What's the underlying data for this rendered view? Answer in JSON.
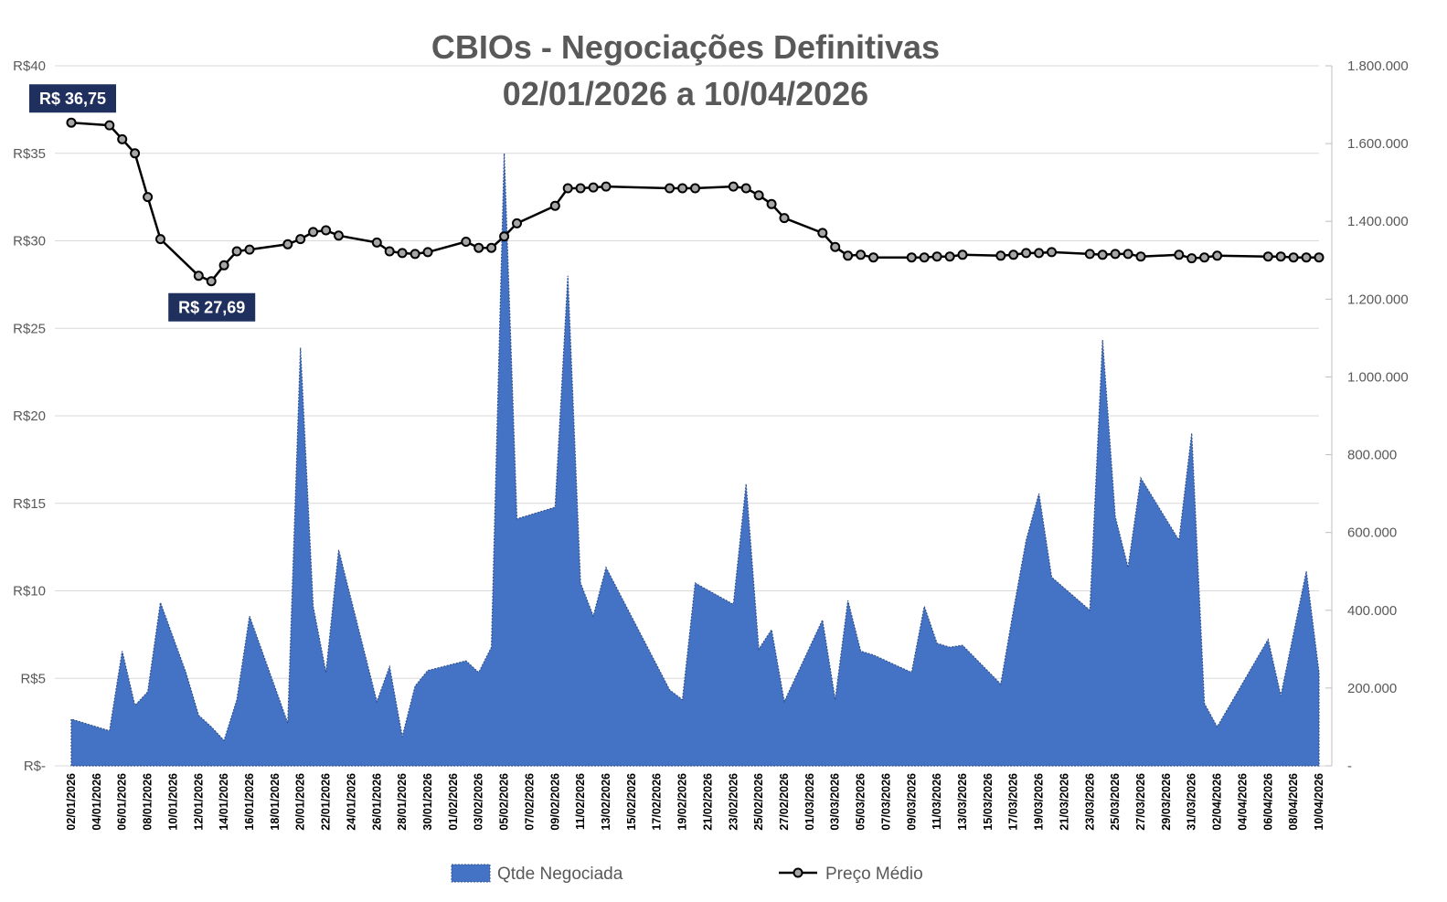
{
  "chart_data": {
    "type": "area+line",
    "title": "CBIOs - Negociações Definitivas",
    "subtitle": "02/01/2026 a 10/04/2026",
    "colors": {
      "area": "#4472C4",
      "area_outline": "#2F528F",
      "line": "#000000",
      "marker_fill": "#A6A6A6",
      "callout_bg": "#1F2F5E",
      "grid": "#D9D9D9",
      "text": "#595959"
    },
    "y_left": {
      "ylim": [
        0,
        40
      ],
      "ticks": [
        0,
        5,
        10,
        15,
        20,
        25,
        30,
        35,
        40
      ],
      "tick_labels": [
        "R$-",
        "R$5",
        "R$10",
        "R$15",
        "R$20",
        "R$25",
        "R$30",
        "R$35",
        "R$40"
      ]
    },
    "y_right": {
      "ylim": [
        0,
        1800000
      ],
      "ticks": [
        0,
        200000,
        400000,
        600000,
        800000,
        1000000,
        1200000,
        1400000,
        1600000,
        1800000
      ],
      "tick_labels": [
        "-",
        "200.000",
        "400.000",
        "600.000",
        "800.000",
        "1.000.000",
        "1.200.000",
        "1.400.000",
        "1.600.000",
        "1.800.000"
      ]
    },
    "x_tick_labels": [
      "02/01/2026",
      "04/01/2026",
      "06/01/2026",
      "08/01/2026",
      "10/01/2026",
      "12/01/2026",
      "14/01/2026",
      "16/01/2026",
      "18/01/2026",
      "20/01/2026",
      "22/01/2026",
      "24/01/2026",
      "26/01/2026",
      "28/01/2026",
      "30/01/2026",
      "01/02/2026",
      "03/02/2026",
      "05/02/2026",
      "07/02/2026",
      "09/02/2026",
      "11/02/2026",
      "13/02/2026",
      "15/02/2026",
      "17/02/2026",
      "19/02/2026",
      "21/02/2026",
      "23/02/2026",
      "25/02/2026",
      "27/02/2026",
      "01/03/2026",
      "03/03/2026",
      "05/03/2026",
      "07/03/2026",
      "09/03/2026",
      "11/03/2026",
      "13/03/2026",
      "15/03/2026",
      "17/03/2026",
      "19/03/2026",
      "21/03/2026",
      "23/03/2026",
      "25/03/2026",
      "27/03/2026",
      "29/03/2026",
      "31/03/2026",
      "02/04/2026",
      "04/04/2026",
      "06/04/2026",
      "08/04/2026",
      "10/04/2026"
    ],
    "series": [
      {
        "name": "Qtde Negociada",
        "type": "area",
        "axis": "right",
        "points": [
          [
            "02/01/2026",
            120000
          ],
          [
            "05/01/2026",
            90000
          ],
          [
            "06/01/2026",
            295000
          ],
          [
            "07/01/2026",
            155000
          ],
          [
            "08/01/2026",
            190000
          ],
          [
            "09/01/2026",
            420000
          ],
          [
            "11/01/2026",
            240000
          ],
          [
            "12/01/2026",
            130000
          ],
          [
            "13/01/2026",
            100000
          ],
          [
            "14/01/2026",
            65000
          ],
          [
            "15/01/2026",
            170000
          ],
          [
            "16/01/2026",
            385000
          ],
          [
            "19/01/2026",
            110000
          ],
          [
            "20/01/2026",
            1075000
          ],
          [
            "21/01/2026",
            410000
          ],
          [
            "22/01/2026",
            240000
          ],
          [
            "23/01/2026",
            555000
          ],
          [
            "26/01/2026",
            165000
          ],
          [
            "27/01/2026",
            255000
          ],
          [
            "28/01/2026",
            75000
          ],
          [
            "29/01/2026",
            205000
          ],
          [
            "30/01/2026",
            245000
          ],
          [
            "02/02/2026",
            270000
          ],
          [
            "03/02/2026",
            240000
          ],
          [
            "04/02/2026",
            305000
          ],
          [
            "05/02/2026",
            1575000
          ],
          [
            "06/02/2026",
            635000
          ],
          [
            "09/02/2026",
            665000
          ],
          [
            "10/02/2026",
            1260000
          ],
          [
            "11/02/2026",
            470000
          ],
          [
            "12/02/2026",
            385000
          ],
          [
            "13/02/2026",
            510000
          ],
          [
            "18/02/2026",
            195000
          ],
          [
            "19/02/2026",
            170000
          ],
          [
            "20/02/2026",
            470000
          ],
          [
            "23/02/2026",
            415000
          ],
          [
            "24/02/2026",
            725000
          ],
          [
            "25/02/2026",
            300000
          ],
          [
            "26/02/2026",
            350000
          ],
          [
            "27/02/2026",
            165000
          ],
          [
            "02/03/2026",
            375000
          ],
          [
            "03/03/2026",
            170000
          ],
          [
            "04/03/2026",
            425000
          ],
          [
            "05/03/2026",
            295000
          ],
          [
            "06/03/2026",
            285000
          ],
          [
            "09/03/2026",
            240000
          ],
          [
            "10/03/2026",
            410000
          ],
          [
            "11/03/2026",
            315000
          ],
          [
            "12/03/2026",
            305000
          ],
          [
            "13/03/2026",
            310000
          ],
          [
            "16/03/2026",
            210000
          ],
          [
            "17/03/2026",
            400000
          ],
          [
            "18/03/2026",
            580000
          ],
          [
            "19/03/2026",
            700000
          ],
          [
            "20/03/2026",
            485000
          ],
          [
            "23/03/2026",
            400000
          ],
          [
            "24/03/2026",
            1095000
          ],
          [
            "25/03/2026",
            640000
          ],
          [
            "26/03/2026",
            510000
          ],
          [
            "27/03/2026",
            740000
          ],
          [
            "30/03/2026",
            580000
          ],
          [
            "31/03/2026",
            855000
          ],
          [
            "01/04/2026",
            160000
          ],
          [
            "02/04/2026",
            100000
          ],
          [
            "06/04/2026",
            325000
          ],
          [
            "07/04/2026",
            180000
          ],
          [
            "09/04/2026",
            500000
          ],
          [
            "10/04/2026",
            240000
          ]
        ]
      },
      {
        "name": "Preço Médio",
        "type": "line",
        "axis": "left",
        "points": [
          [
            "02/01/2026",
            36.75
          ],
          [
            "05/01/2026",
            36.6
          ],
          [
            "06/01/2026",
            35.8
          ],
          [
            "07/01/2026",
            35.0
          ],
          [
            "08/01/2026",
            32.5
          ],
          [
            "09/01/2026",
            30.1
          ],
          [
            "12/01/2026",
            28.0
          ],
          [
            "13/01/2026",
            27.69
          ],
          [
            "14/01/2026",
            28.6
          ],
          [
            "15/01/2026",
            29.4
          ],
          [
            "16/01/2026",
            29.5
          ],
          [
            "19/01/2026",
            29.8
          ],
          [
            "20/01/2026",
            30.1
          ],
          [
            "21/01/2026",
            30.5
          ],
          [
            "22/01/2026",
            30.6
          ],
          [
            "23/01/2026",
            30.3
          ],
          [
            "26/01/2026",
            29.9
          ],
          [
            "27/01/2026",
            29.4
          ],
          [
            "28/01/2026",
            29.3
          ],
          [
            "29/01/2026",
            29.25
          ],
          [
            "30/01/2026",
            29.35
          ],
          [
            "02/02/2026",
            29.95
          ],
          [
            "03/02/2026",
            29.6
          ],
          [
            "04/02/2026",
            29.6
          ],
          [
            "05/02/2026",
            30.25
          ],
          [
            "06/02/2026",
            31.0
          ],
          [
            "09/02/2026",
            32.0
          ],
          [
            "10/02/2026",
            33.0
          ],
          [
            "11/02/2026",
            33.0
          ],
          [
            "12/02/2026",
            33.05
          ],
          [
            "13/02/2026",
            33.1
          ],
          [
            "18/02/2026",
            33.0
          ],
          [
            "19/02/2026",
            33.0
          ],
          [
            "20/02/2026",
            33.0
          ],
          [
            "23/02/2026",
            33.1
          ],
          [
            "24/02/2026",
            33.0
          ],
          [
            "25/02/2026",
            32.6
          ],
          [
            "26/02/2026",
            32.1
          ],
          [
            "27/02/2026",
            31.3
          ],
          [
            "02/03/2026",
            30.45
          ],
          [
            "03/03/2026",
            29.65
          ],
          [
            "04/03/2026",
            29.15
          ],
          [
            "05/03/2026",
            29.2
          ],
          [
            "06/03/2026",
            29.05
          ],
          [
            "09/03/2026",
            29.05
          ],
          [
            "10/03/2026",
            29.05
          ],
          [
            "11/03/2026",
            29.1
          ],
          [
            "12/03/2026",
            29.1
          ],
          [
            "13/03/2026",
            29.2
          ],
          [
            "16/03/2026",
            29.15
          ],
          [
            "17/03/2026",
            29.2
          ],
          [
            "18/03/2026",
            29.3
          ],
          [
            "19/03/2026",
            29.3
          ],
          [
            "20/03/2026",
            29.35
          ],
          [
            "23/03/2026",
            29.25
          ],
          [
            "24/03/2026",
            29.2
          ],
          [
            "25/03/2026",
            29.25
          ],
          [
            "26/03/2026",
            29.25
          ],
          [
            "27/03/2026",
            29.1
          ],
          [
            "30/03/2026",
            29.2
          ],
          [
            "31/03/2026",
            29.0
          ],
          [
            "01/04/2026",
            29.05
          ],
          [
            "02/04/2026",
            29.15
          ],
          [
            "06/04/2026",
            29.1
          ],
          [
            "07/04/2026",
            29.1
          ],
          [
            "08/04/2026",
            29.05
          ],
          [
            "09/04/2026",
            29.05
          ],
          [
            "10/04/2026",
            29.05
          ]
        ]
      }
    ],
    "annotations": [
      {
        "text": "R$ 36,75",
        "date": "02/01/2026",
        "value": 36.75
      },
      {
        "text": "R$ 27,69",
        "date": "13/01/2026",
        "value": 27.69
      }
    ],
    "legend": {
      "placement": "bottom-center",
      "items": [
        "Qtde Negociada",
        "Preço Médio"
      ]
    },
    "grid": true
  }
}
